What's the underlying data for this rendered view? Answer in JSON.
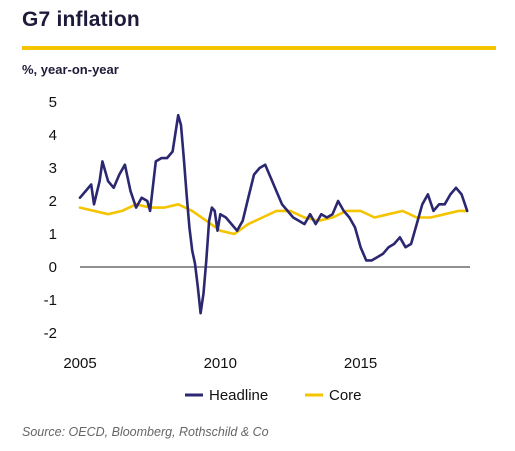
{
  "title": "G7 inflation",
  "unit_label": "%, year-on-year",
  "source": "Source: OECD, Bloomberg, Rothschild & Co",
  "colors": {
    "headline": "#2b2770",
    "core": "#f5c400",
    "accent": "#f5c400",
    "title": "#1e1b3a"
  },
  "chart_data": {
    "type": "line",
    "title": "G7 inflation",
    "xlabel": "",
    "ylabel": "%, year-on-year",
    "xlim": [
      2005,
      2018.9
    ],
    "ylim": [
      -2,
      5
    ],
    "yticks": [
      5,
      4,
      3,
      2,
      1,
      0,
      -1,
      -2
    ],
    "ytick_labels": [
      "5",
      "4",
      "3",
      "2",
      "1",
      "0",
      "-1",
      "-2"
    ],
    "xticks": [
      2005,
      2010,
      2015
    ],
    "xtick_labels": [
      "2005",
      "2010",
      "2015"
    ],
    "grid": false,
    "zero_line": true,
    "legend": "bottom-center",
    "series": [
      {
        "name": "Headline",
        "color": "#2b2770",
        "x": [
          2005.0,
          2005.2,
          2005.4,
          2005.5,
          2005.7,
          2005.8,
          2006.0,
          2006.2,
          2006.4,
          2006.6,
          2006.8,
          2007.0,
          2007.2,
          2007.4,
          2007.5,
          2007.7,
          2007.9,
          2008.1,
          2008.3,
          2008.5,
          2008.6,
          2008.7,
          2008.8,
          2008.9,
          2009.0,
          2009.1,
          2009.2,
          2009.3,
          2009.4,
          2009.5,
          2009.6,
          2009.7,
          2009.8,
          2009.9,
          2010.0,
          2010.2,
          2010.4,
          2010.6,
          2010.8,
          2011.0,
          2011.2,
          2011.4,
          2011.6,
          2011.8,
          2012.0,
          2012.2,
          2012.4,
          2012.6,
          2012.8,
          2013.0,
          2013.2,
          2013.4,
          2013.6,
          2013.8,
          2014.0,
          2014.2,
          2014.4,
          2014.6,
          2014.8,
          2015.0,
          2015.2,
          2015.4,
          2015.6,
          2015.8,
          2016.0,
          2016.2,
          2016.4,
          2016.6,
          2016.8,
          2017.0,
          2017.2,
          2017.4,
          2017.6,
          2017.8,
          2018.0,
          2018.2,
          2018.4,
          2018.6,
          2018.8
        ],
        "values": [
          2.1,
          2.3,
          2.5,
          1.9,
          2.6,
          3.2,
          2.6,
          2.4,
          2.8,
          3.1,
          2.3,
          1.8,
          2.1,
          2.0,
          1.7,
          3.2,
          3.3,
          3.3,
          3.5,
          4.6,
          4.3,
          3.3,
          2.2,
          1.2,
          0.5,
          0.1,
          -0.6,
          -1.4,
          -0.8,
          0.2,
          1.4,
          1.8,
          1.7,
          1.1,
          1.6,
          1.5,
          1.3,
          1.1,
          1.4,
          2.1,
          2.8,
          3.0,
          3.1,
          2.7,
          2.3,
          1.9,
          1.7,
          1.5,
          1.4,
          1.3,
          1.6,
          1.3,
          1.6,
          1.5,
          1.6,
          2.0,
          1.7,
          1.5,
          1.2,
          0.6,
          0.2,
          0.2,
          0.3,
          0.4,
          0.6,
          0.7,
          0.9,
          0.6,
          0.7,
          1.3,
          1.9,
          2.2,
          1.7,
          1.9,
          1.9,
          2.2,
          2.4,
          2.2,
          1.7
        ]
      },
      {
        "name": "Core",
        "color": "#f5c400",
        "x": [
          2005.0,
          2005.5,
          2006.0,
          2006.5,
          2007.0,
          2007.5,
          2008.0,
          2008.5,
          2009.0,
          2009.5,
          2010.0,
          2010.5,
          2011.0,
          2011.5,
          2012.0,
          2012.5,
          2013.0,
          2013.5,
          2014.0,
          2014.5,
          2015.0,
          2015.5,
          2016.0,
          2016.5,
          2017.0,
          2017.5,
          2018.0,
          2018.5,
          2018.8
        ],
        "values": [
          1.8,
          1.7,
          1.6,
          1.7,
          1.9,
          1.8,
          1.8,
          1.9,
          1.7,
          1.4,
          1.1,
          1.0,
          1.3,
          1.5,
          1.7,
          1.7,
          1.5,
          1.4,
          1.5,
          1.7,
          1.7,
          1.5,
          1.6,
          1.7,
          1.5,
          1.5,
          1.6,
          1.7,
          1.7
        ]
      }
    ]
  }
}
